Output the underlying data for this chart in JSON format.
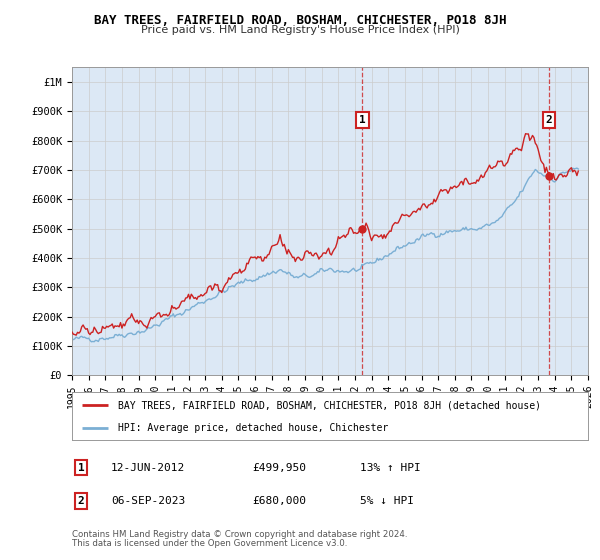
{
  "title": "BAY TREES, FAIRFIELD ROAD, BOSHAM, CHICHESTER, PO18 8JH",
  "subtitle": "Price paid vs. HM Land Registry's House Price Index (HPI)",
  "legend_line1": "BAY TREES, FAIRFIELD ROAD, BOSHAM, CHICHESTER, PO18 8JH (detached house)",
  "legend_line2": "HPI: Average price, detached house, Chichester",
  "annotation1_label": "1",
  "annotation1_date": "12-JUN-2012",
  "annotation1_price": "£499,950",
  "annotation1_hpi": "13% ↑ HPI",
  "annotation2_label": "2",
  "annotation2_date": "06-SEP-2023",
  "annotation2_price": "£680,000",
  "annotation2_hpi": "5% ↓ HPI",
  "footer1": "Contains HM Land Registry data © Crown copyright and database right 2024.",
  "footer2": "This data is licensed under the Open Government Licence v3.0.",
  "hpi_color": "#7bafd4",
  "price_color": "#cc2222",
  "annotation_color": "#cc2222",
  "grid_color": "#cccccc",
  "bg_color": "#ffffff",
  "plot_bg_color": "#dce8f5",
  "ylim_min": 0,
  "ylim_max": 1050000,
  "yticks": [
    0,
    100000,
    200000,
    300000,
    400000,
    500000,
    600000,
    700000,
    800000,
    900000,
    1000000
  ],
  "ytick_labels": [
    "£0",
    "£100K",
    "£200K",
    "£300K",
    "£400K",
    "£500K",
    "£600K",
    "£700K",
    "£800K",
    "£900K",
    "£1M"
  ],
  "sale1_x": 2012.45,
  "sale1_y": 499950,
  "sale2_x": 2023.67,
  "sale2_y": 680000,
  "xmin": 1995,
  "xmax": 2026
}
